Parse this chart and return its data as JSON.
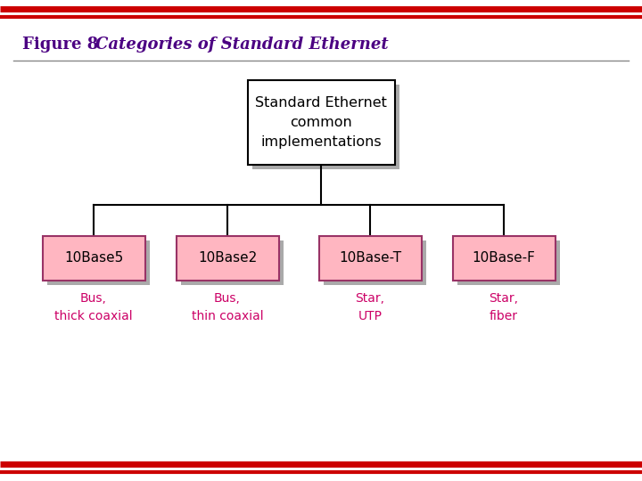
{
  "top_box_text": "Standard Ethernet\ncommon\nimplementations",
  "top_box_color": "#FFFFFF",
  "top_box_border": "#000000",
  "child_boxes": [
    "10Base5",
    "10Base2",
    "10Base-T",
    "10Base-F"
  ],
  "child_box_color": "#FFB6C1",
  "child_box_border": "#993366",
  "child_labels": [
    "Bus,\nthick coaxial",
    "Bus,\nthin coaxial",
    "Star,\nUTP",
    "Star,\nfiber"
  ],
  "child_label_color": "#CC0066",
  "line_color": "#000000",
  "red_color": "#CC0000",
  "bg_color": "#FFFFFF",
  "title_fig_color": "#4B0082",
  "shadow_color": "#AAAAAA",
  "separator_color": "#888888"
}
